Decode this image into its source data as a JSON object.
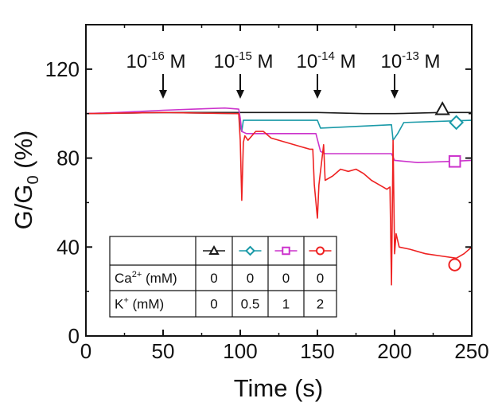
{
  "chart_data": {
    "type": "line",
    "xlabel": "Time (s)",
    "ylabel": {
      "base": "G/G",
      "sub": "0",
      "rest": " (%)"
    },
    "xlim": [
      0,
      250
    ],
    "ylim": [
      0,
      140
    ],
    "xticks": [
      0,
      50,
      100,
      150,
      200,
      250
    ],
    "yticks": [
      0,
      40,
      80,
      120
    ],
    "grid": false,
    "annotations": [
      {
        "base": "10",
        "exp": "-16",
        "unit": " M",
        "x": 50
      },
      {
        "base": "10",
        "exp": "-15",
        "unit": " M",
        "x": 100
      },
      {
        "base": "10",
        "exp": "-14",
        "unit": " M",
        "x": 150
      },
      {
        "base": "10",
        "exp": "-13",
        "unit": " M",
        "x": 200
      }
    ],
    "series": [
      {
        "color": "#1a1a1a",
        "marker": "triangle",
        "marker_at": [
          231,
          102
        ],
        "Ca_mM": "0",
        "K_mM": "0",
        "points": [
          [
            0,
            100
          ],
          [
            50,
            100.5
          ],
          [
            100,
            100.5
          ],
          [
            130,
            100.5
          ],
          [
            150,
            100.5
          ],
          [
            180,
            100
          ],
          [
            200,
            100
          ],
          [
            230,
            100.5
          ],
          [
            250,
            100.5
          ]
        ]
      },
      {
        "color": "#1a9aa8",
        "marker": "diamond",
        "marker_at": [
          240,
          96
        ],
        "Ca_mM": "0",
        "K_mM": "0.5",
        "points": [
          [
            0,
            100
          ],
          [
            50,
            100.5
          ],
          [
            99,
            100
          ],
          [
            100,
            94
          ],
          [
            101,
            92
          ],
          [
            102,
            97
          ],
          [
            150,
            97
          ],
          [
            152,
            93.5
          ],
          [
            198,
            95
          ],
          [
            199,
            88
          ],
          [
            202,
            91
          ],
          [
            206,
            96
          ],
          [
            250,
            97
          ]
        ]
      },
      {
        "color": "#cc33cc",
        "marker": "square",
        "marker_at": [
          239,
          78.5
        ],
        "Ca_mM": "0",
        "K_mM": "1",
        "points": [
          [
            0,
            100
          ],
          [
            20,
            100.5
          ],
          [
            50,
            101.5
          ],
          [
            70,
            102
          ],
          [
            90,
            102.5
          ],
          [
            99,
            102
          ],
          [
            100,
            98
          ],
          [
            101,
            92
          ],
          [
            104,
            91
          ],
          [
            149,
            91
          ],
          [
            152,
            83
          ],
          [
            155,
            82
          ],
          [
            198,
            82
          ],
          [
            200,
            79
          ],
          [
            215,
            78
          ],
          [
            235,
            78.5
          ],
          [
            250,
            79
          ]
        ]
      },
      {
        "color": "#ee2222",
        "marker": "circle",
        "marker_at": [
          239,
          32
        ],
        "Ca_mM": "0",
        "K_mM": "2",
        "points": [
          [
            0,
            100
          ],
          [
            50,
            100.5
          ],
          [
            99,
            100
          ],
          [
            100,
            88
          ],
          [
            101,
            61
          ],
          [
            102,
            87
          ],
          [
            103,
            90
          ],
          [
            105,
            88
          ],
          [
            110,
            92
          ],
          [
            115,
            92
          ],
          [
            120,
            89
          ],
          [
            130,
            87
          ],
          [
            140,
            85
          ],
          [
            145,
            84
          ],
          [
            147,
            84
          ],
          [
            148,
            68
          ],
          [
            150,
            53
          ],
          [
            151,
            68
          ],
          [
            154,
            86
          ],
          [
            155,
            70
          ],
          [
            160,
            72
          ],
          [
            165,
            75
          ],
          [
            170,
            74
          ],
          [
            175,
            75
          ],
          [
            180,
            73
          ],
          [
            185,
            70
          ],
          [
            190,
            68
          ],
          [
            195,
            66
          ],
          [
            197,
            67
          ],
          [
            198,
            23
          ],
          [
            199,
            88
          ],
          [
            200,
            37
          ],
          [
            201,
            46
          ],
          [
            203,
            40
          ],
          [
            210,
            39
          ],
          [
            220,
            37
          ],
          [
            230,
            36
          ],
          [
            240,
            35
          ],
          [
            245,
            37
          ],
          [
            250,
            40
          ]
        ]
      }
    ]
  },
  "legend_table": {
    "rows": [
      {
        "label_base": "Ca",
        "label_sup": "2+",
        "label_rest": " (mM)",
        "values": [
          "0",
          "0",
          "0",
          "0"
        ]
      },
      {
        "label_base": "K",
        "label_sup": "+",
        "label_rest": " (mM)",
        "values": [
          "0",
          "0.5",
          "1",
          "2"
        ]
      }
    ]
  }
}
